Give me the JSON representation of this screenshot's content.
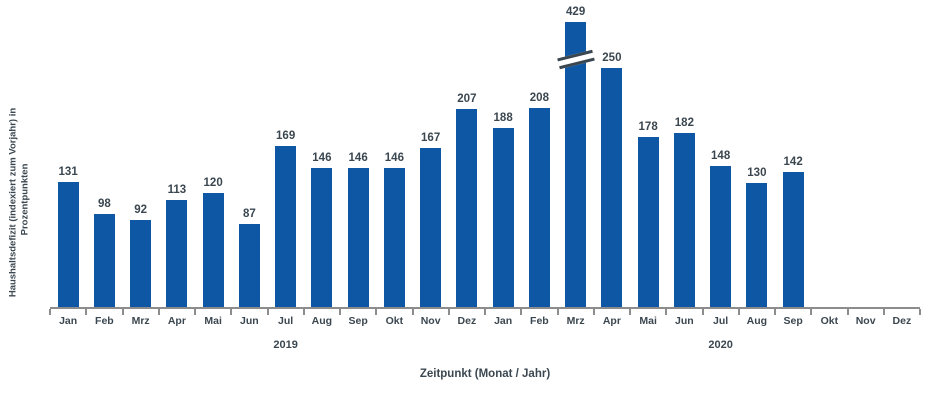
{
  "chart_data": {
    "type": "bar",
    "title": "",
    "xlabel": "Zeitpunkt (Monat / Jahr)",
    "ylabel_line1": "Haushaltsdefizit (indexiert zum Vorjahr) in",
    "ylabel_line2": "Prozentpunkten",
    "categories": [
      "Jan",
      "Feb",
      "Mrz",
      "Apr",
      "Mai",
      "Jun",
      "Jul",
      "Aug",
      "Sep",
      "Okt",
      "Nov",
      "Dez",
      "Jan",
      "Feb",
      "Mrz",
      "Apr",
      "Mai",
      "Jun",
      "Jul",
      "Aug",
      "Sep",
      "Okt",
      "Nov",
      "Dez"
    ],
    "values": [
      131,
      98,
      92,
      113,
      120,
      87,
      169,
      146,
      146,
      146,
      167,
      207,
      188,
      208,
      429,
      250,
      178,
      182,
      148,
      130,
      142,
      null,
      null,
      null
    ],
    "year_labels": [
      {
        "label": "2019",
        "slot_index": 6
      },
      {
        "label": "2020",
        "slot_index": 18
      }
    ],
    "broken_bar": {
      "index": 14,
      "value": 429,
      "note": "bar truncated with axis-break marker"
    },
    "ylim": [
      0,
      300
    ],
    "grid": false,
    "legend": "none",
    "colors": {
      "bar": "#0d57a4",
      "text": "#3b4750",
      "axis": "#8c8c8c",
      "background": "#ffffff"
    }
  }
}
